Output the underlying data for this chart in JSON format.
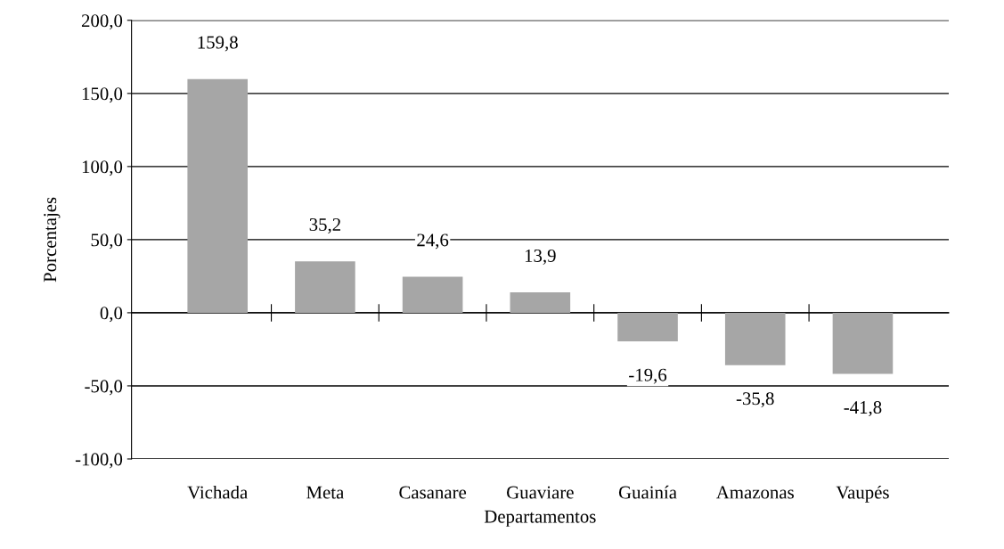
{
  "chart_data": {
    "type": "bar",
    "xlabel": "Departamentos",
    "ylabel": "Porcentajes",
    "categories": [
      "Vichada",
      "Meta",
      "Casanare",
      "Guaviare",
      "Guainía",
      "Amazonas",
      "Vaupés"
    ],
    "values": [
      159.8,
      35.2,
      24.6,
      13.9,
      -19.6,
      -35.8,
      -41.8
    ],
    "value_labels": [
      "159,8",
      "35,2",
      "24,6",
      "13,9",
      "-19,6",
      "-35,8",
      "-41,8"
    ],
    "color": "#a6a6a6",
    "ylim": [
      -100,
      200
    ],
    "yticks": [
      {
        "value": -100,
        "label": "-100,0"
      },
      {
        "value": -50,
        "label": "-50,0"
      },
      {
        "value": 0,
        "label": "0,0"
      },
      {
        "value": 50,
        "label": "50,0"
      },
      {
        "value": 100,
        "label": "100,0"
      },
      {
        "value": 150,
        "label": "150,0"
      },
      {
        "value": 200,
        "label": "200,0"
      }
    ],
    "grid": "y"
  }
}
